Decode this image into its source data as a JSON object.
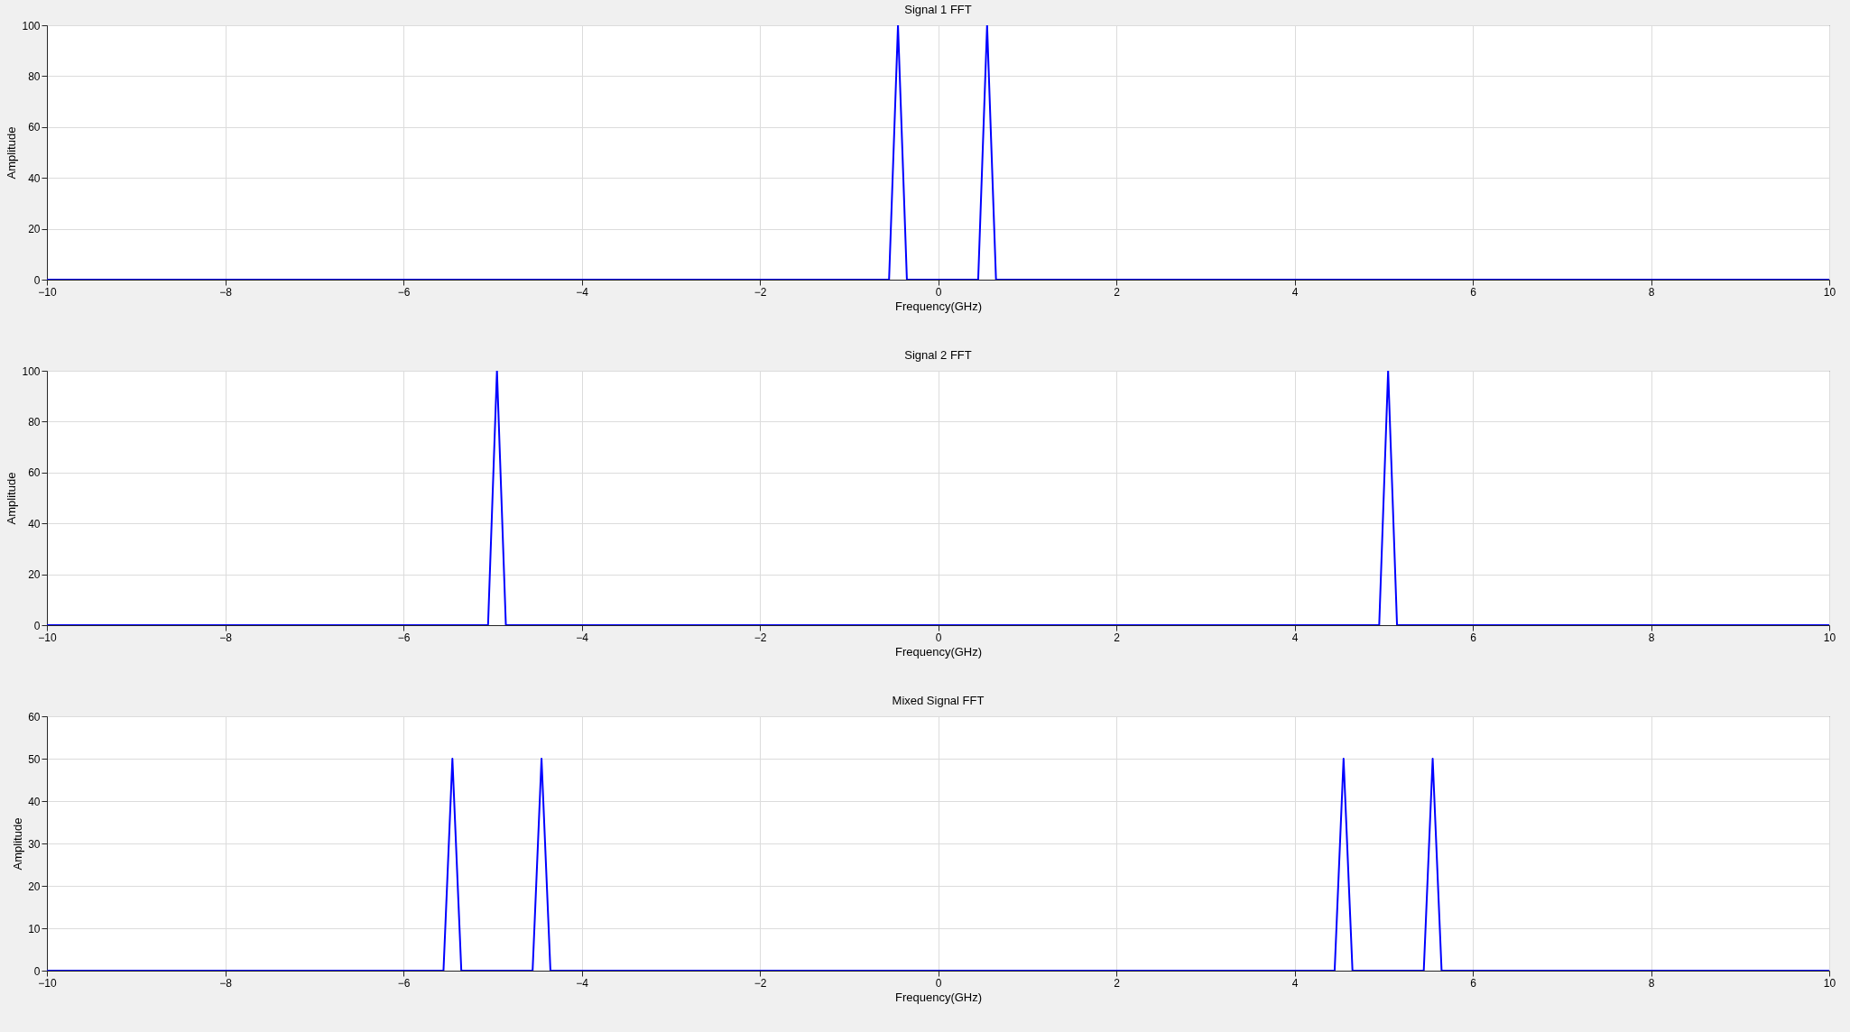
{
  "chart_data": [
    {
      "type": "line",
      "title": "Signal 1 FFT",
      "xlabel": "Frequency(GHz)",
      "ylabel": "Amplitude",
      "xlim": [
        -10,
        10
      ],
      "ylim": [
        0,
        100
      ],
      "xticks": [
        -10,
        -8,
        -6,
        -4,
        -2,
        0,
        2,
        4,
        6,
        8,
        10
      ],
      "yticks": [
        0,
        20,
        40,
        60,
        80,
        100
      ],
      "grid": true,
      "line_style": "solid",
      "marker": "none",
      "series": [
        {
          "color": "#0000ff",
          "x": [
            -10,
            -0.55,
            -0.45,
            -0.35,
            0.45,
            0.55,
            0.65,
            10
          ],
          "values": [
            0,
            0,
            100,
            0,
            0,
            100,
            0,
            0
          ]
        }
      ]
    },
    {
      "type": "line",
      "title": "Signal 2 FFT",
      "xlabel": "Frequency(GHz)",
      "ylabel": "Amplitude",
      "xlim": [
        -10,
        10
      ],
      "ylim": [
        0,
        100
      ],
      "xticks": [
        -10,
        -8,
        -6,
        -4,
        -2,
        0,
        2,
        4,
        6,
        8,
        10
      ],
      "yticks": [
        0,
        20,
        40,
        60,
        80,
        100
      ],
      "grid": true,
      "line_style": "solid",
      "marker": "none",
      "series": [
        {
          "color": "#0000ff",
          "x": [
            -10,
            -5.05,
            -4.95,
            -4.85,
            4.95,
            5.05,
            5.15,
            10
          ],
          "values": [
            0,
            0,
            100,
            0,
            0,
            100,
            0,
            0
          ]
        }
      ]
    },
    {
      "type": "line",
      "title": "Mixed Signal FFT",
      "xlabel": "Frequency(GHz)",
      "ylabel": "Amplitude",
      "xlim": [
        -10,
        10
      ],
      "ylim": [
        0,
        60
      ],
      "xticks": [
        -10,
        -8,
        -6,
        -4,
        -2,
        0,
        2,
        4,
        6,
        8,
        10
      ],
      "yticks": [
        0,
        10,
        20,
        30,
        40,
        50,
        60
      ],
      "grid": true,
      "line_style": "solid",
      "marker": "none",
      "series": [
        {
          "color": "#0000ff",
          "x": [
            -10,
            -5.55,
            -5.45,
            -5.35,
            -4.55,
            -4.45,
            -4.35,
            4.45,
            4.55,
            4.65,
            5.45,
            5.55,
            5.65,
            10
          ],
          "values": [
            0,
            0,
            50,
            0,
            0,
            50,
            0,
            0,
            50,
            0,
            0,
            50,
            0,
            0
          ]
        }
      ]
    }
  ]
}
